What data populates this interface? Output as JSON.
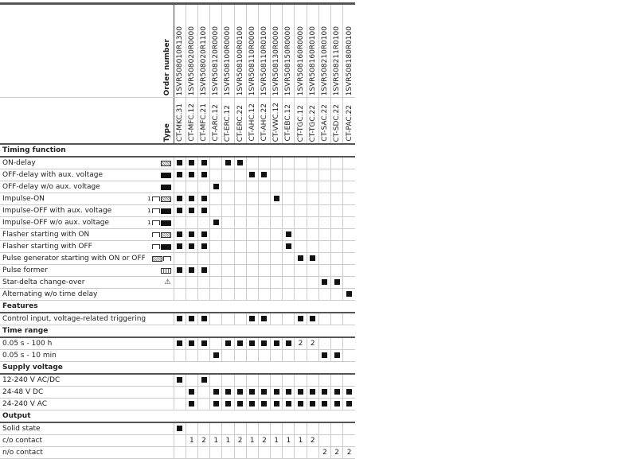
{
  "header": {
    "order_number_label": "Order number",
    "type_label": "Type",
    "products": [
      {
        "type": "CT-MKC.31",
        "order": "1SVR508010R1300"
      },
      {
        "type": "CT-MFC.12",
        "order": "1SVR508020R0000"
      },
      {
        "type": "CT-MFC.21",
        "order": "1SVR508020R1100"
      },
      {
        "type": "CT-ARC.12",
        "order": "1SVR508120R0000"
      },
      {
        "type": "CT-ERC.12",
        "order": "1SVR508100R0000"
      },
      {
        "type": "CT-ERC.22",
        "order": "1SVR508100R0100"
      },
      {
        "type": "CT-AHC.12",
        "order": "1SVR508110R0000"
      },
      {
        "type": "CT-AHC.22",
        "order": "1SVR508110R0100"
      },
      {
        "type": "CT-VWC.12",
        "order": "1SVR508130R0000"
      },
      {
        "type": "CT-EBC.12",
        "order": "1SVR508150R0000"
      },
      {
        "type": "CT-TGC.12",
        "order": "1SVR508160R0000"
      },
      {
        "type": "CT-TGC.22",
        "order": "1SVR508160R0100"
      },
      {
        "type": "CT-SAC.22",
        "order": "1SVR508210R0100"
      },
      {
        "type": "CT-SDC.22",
        "order": "1SVR508211R0100"
      },
      {
        "type": "CT-PAC.22",
        "order": "1SVR508180R0100"
      }
    ]
  },
  "marker": "■",
  "sections": [
    {
      "title": "Timing function",
      "rows": [
        {
          "label": "ON-delay",
          "icon": "on-delay-icon",
          "cells": [
            "■",
            "■",
            "■",
            "",
            "■",
            "■",
            "",
            "",
            "",
            "",
            "",
            "",
            "",
            "",
            ""
          ]
        },
        {
          "label": "OFF-delay with aux. voltage",
          "icon": "off-delay-icon",
          "cells": [
            "■",
            "■",
            "■",
            "",
            "",
            "",
            "■",
            "■",
            "",
            "",
            "",
            "",
            "",
            "",
            ""
          ]
        },
        {
          "label": "OFF-delay w/o aux. voltage",
          "icon": "off-delay-icon",
          "cells": [
            "",
            "",
            "",
            "■",
            "",
            "",
            "",
            "",
            "",
            "",
            "",
            "",
            "",
            "",
            ""
          ]
        },
        {
          "label": "Impulse-ON",
          "icon": "impulse-on-icon",
          "cells": [
            "■",
            "■",
            "■",
            "",
            "",
            "",
            "",
            "",
            "■",
            "",
            "",
            "",
            "",
            "",
            ""
          ]
        },
        {
          "label": "Impulse-OFF with aux. voltage",
          "icon": "impulse-off-icon",
          "cells": [
            "■",
            "■",
            "■",
            "",
            "",
            "",
            "",
            "",
            "",
            "",
            "",
            "",
            "",
            "",
            ""
          ]
        },
        {
          "label": "Impulse-OFF w/o aux. voltage",
          "icon": "impulse-off-icon",
          "cells": [
            "",
            "",
            "",
            "■",
            "",
            "",
            "",
            "",
            "",
            "",
            "",
            "",
            "",
            "",
            ""
          ]
        },
        {
          "label": "Flasher starting with ON",
          "icon": "flasher-on-icon",
          "cells": [
            "■",
            "■",
            "■",
            "",
            "",
            "",
            "",
            "",
            "",
            "■",
            "",
            "",
            "",
            "",
            ""
          ]
        },
        {
          "label": "Flasher starting with OFF",
          "icon": "flasher-off-icon",
          "cells": [
            "■",
            "■",
            "■",
            "",
            "",
            "",
            "",
            "",
            "",
            "■",
            "",
            "",
            "",
            "",
            ""
          ]
        },
        {
          "label": "Pulse generator starting with ON or OFF",
          "icon": "pulse-generator-icon",
          "cells": [
            "",
            "",
            "",
            "",
            "",
            "",
            "",
            "",
            "",
            "",
            "■",
            "■",
            "",
            "",
            ""
          ]
        },
        {
          "label": "Pulse former",
          "icon": "pulse-former-icon",
          "cells": [
            "■",
            "■",
            "■",
            "",
            "",
            "",
            "",
            "",
            "",
            "",
            "",
            "",
            "",
            "",
            ""
          ]
        },
        {
          "label": "Star-delta change-over",
          "icon": "star-delta-icon",
          "cells": [
            "",
            "",
            "",
            "",
            "",
            "",
            "",
            "",
            "",
            "",
            "",
            "",
            "■",
            "■",
            ""
          ]
        },
        {
          "label": "Alternating w/o time delay",
          "icon": "",
          "cells": [
            "",
            "",
            "",
            "",
            "",
            "",
            "",
            "",
            "",
            "",
            "",
            "",
            "",
            "",
            "■"
          ]
        }
      ]
    },
    {
      "title": "Features",
      "rows": [
        {
          "label": "Control input, voltage-related triggering",
          "icon": "",
          "cells": [
            "■",
            "■",
            "■",
            "",
            "",
            "",
            "■",
            "■",
            "",
            "",
            "■",
            "■",
            "",
            "",
            ""
          ]
        }
      ]
    },
    {
      "title": "Time range",
      "rows": [
        {
          "label": "0.05 s - 100 h",
          "icon": "",
          "cells": [
            "■",
            "■",
            "■",
            "",
            "■",
            "■",
            "■",
            "■",
            "■",
            "■",
            "2",
            "2",
            "",
            "",
            ""
          ]
        },
        {
          "label": "0.05 s - 10 min",
          "icon": "",
          "cells": [
            "",
            "",
            "",
            "■",
            "",
            "",
            "",
            "",
            "",
            "",
            "",
            "",
            "■",
            "■",
            ""
          ]
        }
      ]
    },
    {
      "title": "Supply voltage",
      "rows": [
        {
          "label": "12-240 V AC/DC",
          "icon": "",
          "cells": [
            "■",
            "",
            "■",
            "",
            "",
            "",
            "",
            "",
            "",
            "",
            "",
            "",
            "",
            "",
            ""
          ]
        },
        {
          "label": "24-48 V DC",
          "icon": "",
          "cells": [
            "",
            "■",
            "",
            "■",
            "■",
            "■",
            "■",
            "■",
            "■",
            "■",
            "■",
            "■",
            "■",
            "■",
            "■"
          ]
        },
        {
          "label": "24-240 V AC",
          "icon": "",
          "cells": [
            "",
            "■",
            "",
            "■",
            "■",
            "■",
            "■",
            "■",
            "■",
            "■",
            "■",
            "■",
            "■",
            "■",
            "■"
          ]
        }
      ]
    },
    {
      "title": "Output",
      "rows": [
        {
          "label": "Solid state",
          "icon": "",
          "cells": [
            "■",
            "",
            "",
            "",
            "",
            "",
            "",
            "",
            "",
            "",
            "",
            "",
            "",
            "",
            ""
          ]
        },
        {
          "label": "c/o contact",
          "icon": "",
          "cells": [
            "",
            "1",
            "2",
            "1",
            "1",
            "2",
            "1",
            "2",
            "1",
            "1",
            "1",
            "2",
            "",
            "",
            ""
          ]
        },
        {
          "label": "n/o contact",
          "icon": "",
          "cells": [
            "",
            "",
            "",
            "",
            "",
            "",
            "",
            "",
            "",
            "",
            "",
            "",
            "2",
            "2",
            "2"
          ]
        }
      ]
    }
  ]
}
